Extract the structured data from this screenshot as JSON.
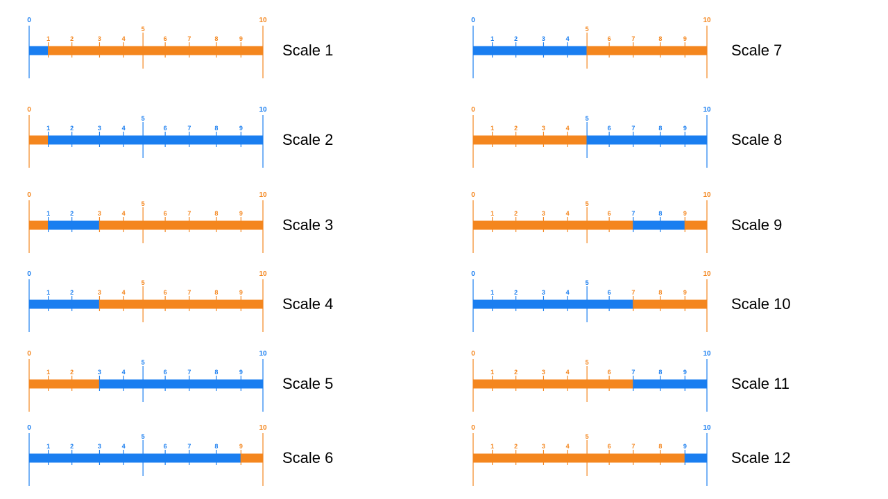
{
  "colors": {
    "blue": "#1a7ef0",
    "orange": "#f4861e",
    "label": "#000000"
  },
  "scale_min": 0,
  "scale_max": 10,
  "tick_labels": [
    "0",
    "1",
    "2",
    "3",
    "4",
    "5",
    "6",
    "7",
    "8",
    "9",
    "10"
  ],
  "scales": [
    {
      "label": "Scale 1",
      "segments": [
        {
          "from": 0,
          "to": 1,
          "color": "blue"
        },
        {
          "from": 1,
          "to": 10,
          "color": "orange"
        }
      ]
    },
    {
      "label": "Scale 2",
      "segments": [
        {
          "from": 0,
          "to": 1,
          "color": "orange"
        },
        {
          "from": 1,
          "to": 10,
          "color": "blue"
        }
      ]
    },
    {
      "label": "Scale 3",
      "segments": [
        {
          "from": 0,
          "to": 1,
          "color": "orange"
        },
        {
          "from": 1,
          "to": 3,
          "color": "blue"
        },
        {
          "from": 3,
          "to": 10,
          "color": "orange"
        }
      ]
    },
    {
      "label": "Scale 4",
      "segments": [
        {
          "from": 0,
          "to": 3,
          "color": "blue"
        },
        {
          "from": 3,
          "to": 10,
          "color": "orange"
        }
      ]
    },
    {
      "label": "Scale 5",
      "segments": [
        {
          "from": 0,
          "to": 3,
          "color": "orange"
        },
        {
          "from": 3,
          "to": 10,
          "color": "blue"
        }
      ]
    },
    {
      "label": "Scale 6",
      "segments": [
        {
          "from": 0,
          "to": 9,
          "color": "blue"
        },
        {
          "from": 9,
          "to": 10,
          "color": "orange"
        }
      ]
    },
    {
      "label": "Scale 7",
      "segments": [
        {
          "from": 0,
          "to": 5,
          "color": "blue"
        },
        {
          "from": 5,
          "to": 10,
          "color": "orange"
        }
      ]
    },
    {
      "label": "Scale 8",
      "segments": [
        {
          "from": 0,
          "to": 5,
          "color": "orange"
        },
        {
          "from": 5,
          "to": 10,
          "color": "blue"
        }
      ]
    },
    {
      "label": "Scale 9",
      "segments": [
        {
          "from": 0,
          "to": 7,
          "color": "orange"
        },
        {
          "from": 7,
          "to": 9,
          "color": "blue"
        },
        {
          "from": 9,
          "to": 10,
          "color": "orange"
        }
      ]
    },
    {
      "label": "Scale 10",
      "segments": [
        {
          "from": 0,
          "to": 7,
          "color": "blue"
        },
        {
          "from": 7,
          "to": 10,
          "color": "orange"
        }
      ]
    },
    {
      "label": "Scale 11",
      "segments": [
        {
          "from": 0,
          "to": 7,
          "color": "orange"
        },
        {
          "from": 7,
          "to": 10,
          "color": "blue"
        }
      ]
    },
    {
      "label": "Scale 12",
      "segments": [
        {
          "from": 0,
          "to": 9,
          "color": "orange"
        },
        {
          "from": 9,
          "to": 10,
          "color": "blue"
        }
      ]
    }
  ]
}
